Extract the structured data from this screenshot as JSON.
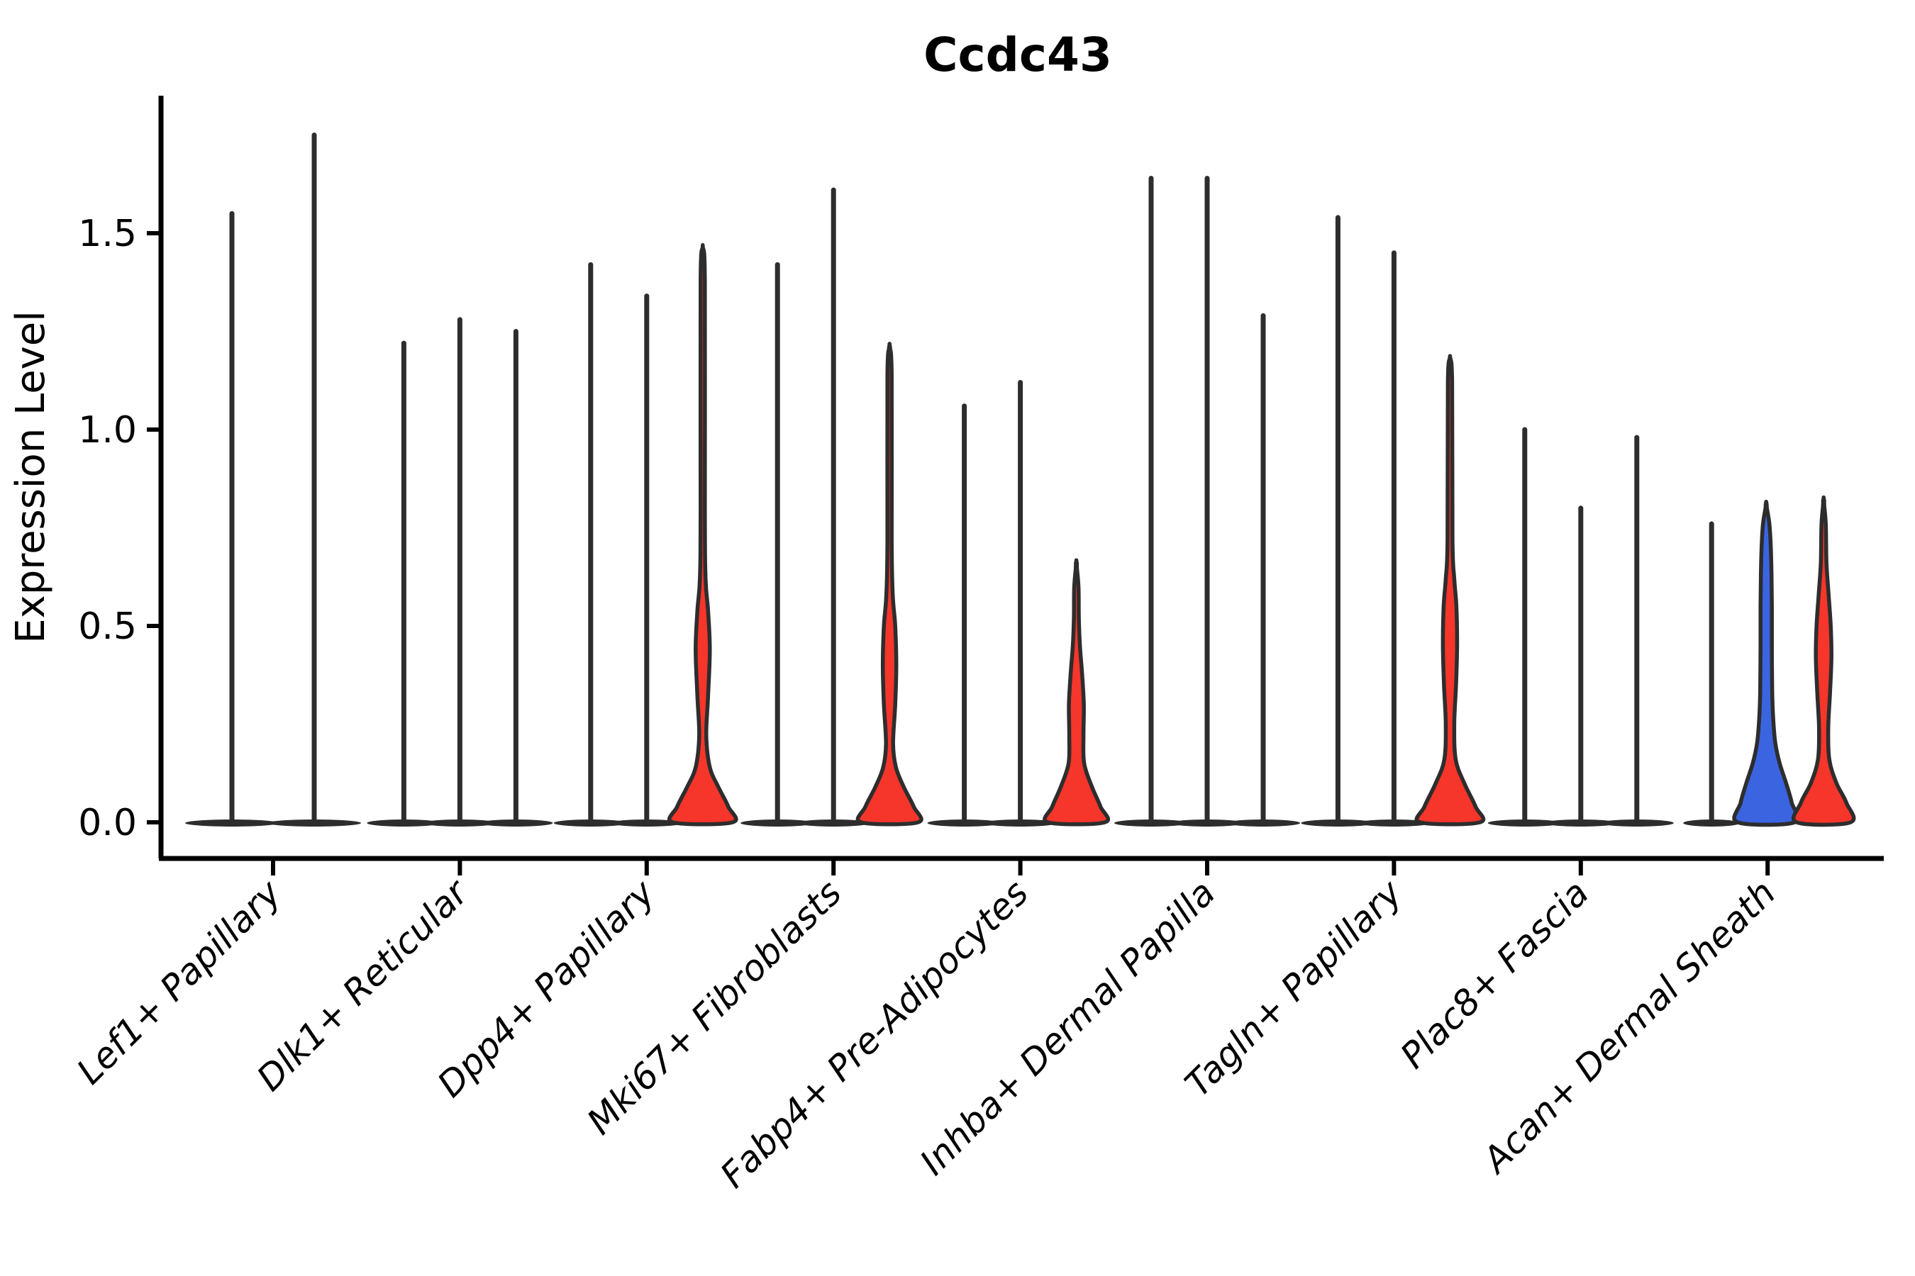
{
  "chart_data": {
    "type": "violin",
    "title": "Ccdc43",
    "ylabel": "Expression Level",
    "xlabel": "",
    "ylim": [
      0,
      1.85
    ],
    "yticks": [
      0.0,
      0.5,
      1.0,
      1.5
    ],
    "ytick_labels": [
      "0.0",
      "0.5",
      "1.0",
      "1.5"
    ],
    "grid": false,
    "legend": "none",
    "colors": {
      "red": "#f6352b",
      "blue": "#3b64e0",
      "line": "#2d2d2d"
    },
    "categories": [
      {
        "label": "Lef1+ Papillary",
        "violins": [
          {
            "kind": "spike",
            "offset": -58,
            "max": 1.55,
            "pancake_halfwidth": 66
          },
          {
            "kind": "spike",
            "offset": 58,
            "max": 1.75,
            "pancake_halfwidth": 66
          }
        ]
      },
      {
        "label": "Dlk1+ Reticular",
        "violins": [
          {
            "kind": "spike",
            "offset": -79,
            "max": 1.22,
            "pancake_halfwidth": 52
          },
          {
            "kind": "spike",
            "offset": 0,
            "max": 1.28,
            "pancake_halfwidth": 52
          },
          {
            "kind": "spike",
            "offset": 79,
            "max": 1.25,
            "pancake_halfwidth": 52
          }
        ]
      },
      {
        "label": "Dpp4+ Papillary",
        "violins": [
          {
            "kind": "spike",
            "offset": -79,
            "max": 1.42,
            "pancake_halfwidth": 52
          },
          {
            "kind": "spike",
            "offset": 0,
            "max": 1.34,
            "pancake_halfwidth": 52
          },
          {
            "kind": "filled",
            "offset": 79,
            "max": 1.46,
            "fill": "red",
            "profile": [
              [
                0,
                42
              ],
              [
                0.04,
                36
              ],
              [
                0.09,
                22
              ],
              [
                0.14,
                10
              ],
              [
                0.22,
                5
              ],
              [
                0.32,
                7.5
              ],
              [
                0.44,
                10
              ],
              [
                0.54,
                7.5
              ],
              [
                0.62,
                4
              ],
              [
                0.8,
                3
              ],
              [
                1.38,
                3
              ],
              [
                1.46,
                0
              ]
            ]
          }
        ]
      },
      {
        "label": "Mki67+ Fibroblasts",
        "violins": [
          {
            "kind": "spike",
            "offset": -79,
            "max": 1.42,
            "pancake_halfwidth": 52
          },
          {
            "kind": "spike",
            "offset": 0,
            "max": 1.61,
            "pancake_halfwidth": 52
          },
          {
            "kind": "filled",
            "offset": 79,
            "max": 1.21,
            "fill": "red",
            "profile": [
              [
                0,
                40
              ],
              [
                0.04,
                34
              ],
              [
                0.09,
                20
              ],
              [
                0.14,
                9
              ],
              [
                0.2,
                5
              ],
              [
                0.3,
                8
              ],
              [
                0.4,
                9.5
              ],
              [
                0.5,
                8
              ],
              [
                0.58,
                4.5
              ],
              [
                0.72,
                3
              ],
              [
                1.14,
                3
              ],
              [
                1.21,
                0
              ]
            ]
          }
        ]
      },
      {
        "label": "Fabp4+ Pre-Adipocytes",
        "violins": [
          {
            "kind": "spike",
            "offset": -79,
            "max": 1.06,
            "pancake_halfwidth": 52
          },
          {
            "kind": "spike",
            "offset": 0,
            "max": 1.12,
            "pancake_halfwidth": 52
          },
          {
            "kind": "filled",
            "offset": 79,
            "max": 0.66,
            "fill": "red",
            "profile": [
              [
                0,
                40
              ],
              [
                0.04,
                34
              ],
              [
                0.09,
                22
              ],
              [
                0.15,
                11
              ],
              [
                0.22,
                10
              ],
              [
                0.3,
                10.5
              ],
              [
                0.38,
                8
              ],
              [
                0.45,
                5
              ],
              [
                0.52,
                3.5
              ],
              [
                0.6,
                3
              ],
              [
                0.66,
                0
              ]
            ]
          }
        ]
      },
      {
        "label": "Inhba+ Dermal Papilla",
        "violins": [
          {
            "kind": "spike",
            "offset": -79,
            "max": 1.64,
            "pancake_halfwidth": 52
          },
          {
            "kind": "spike",
            "offset": 0,
            "max": 1.64,
            "pancake_halfwidth": 52
          },
          {
            "kind": "spike",
            "offset": 79,
            "max": 1.29,
            "pancake_halfwidth": 52
          }
        ]
      },
      {
        "label": "Tagln+ Papillary",
        "violins": [
          {
            "kind": "spike",
            "offset": -79,
            "max": 1.54,
            "pancake_halfwidth": 52
          },
          {
            "kind": "spike",
            "offset": 0,
            "max": 1.45,
            "pancake_halfwidth": 52
          },
          {
            "kind": "filled",
            "offset": 79,
            "max": 1.18,
            "fill": "red",
            "profile": [
              [
                0,
                42
              ],
              [
                0.04,
                36
              ],
              [
                0.1,
                20
              ],
              [
                0.16,
                8
              ],
              [
                0.25,
                6
              ],
              [
                0.35,
                8.5
              ],
              [
                0.45,
                10
              ],
              [
                0.55,
                9
              ],
              [
                0.62,
                6
              ],
              [
                0.72,
                3.5
              ],
              [
                1.12,
                3
              ],
              [
                1.18,
                0
              ]
            ]
          }
        ]
      },
      {
        "label": "Plac8+ Fascia",
        "violins": [
          {
            "kind": "spike",
            "offset": -79,
            "max": 1.0,
            "pancake_halfwidth": 52
          },
          {
            "kind": "spike",
            "offset": 0,
            "max": 0.8,
            "pancake_halfwidth": 52
          },
          {
            "kind": "spike",
            "offset": 79,
            "max": 0.98,
            "pancake_halfwidth": 52
          }
        ]
      },
      {
        "label": "Acan+ Dermal Sheath",
        "violins": [
          {
            "kind": "spike",
            "offset": -79,
            "max": 0.76,
            "pancake_halfwidth": 40
          },
          {
            "kind": "filled",
            "offset": -2,
            "max": 0.81,
            "fill": "blue",
            "profile": [
              [
                0,
                40
              ],
              [
                0.05,
                36
              ],
              [
                0.1,
                28
              ],
              [
                0.15,
                19
              ],
              [
                0.2,
                13
              ],
              [
                0.26,
                10
              ],
              [
                0.33,
                8.5
              ],
              [
                0.45,
                8
              ],
              [
                0.55,
                8
              ],
              [
                0.63,
                7.5
              ],
              [
                0.7,
                6.5
              ],
              [
                0.76,
                4.5
              ],
              [
                0.81,
                0
              ]
            ]
          },
          {
            "kind": "filled",
            "offset": 79,
            "max": 0.82,
            "fill": "red",
            "profile": [
              [
                0,
                38
              ],
              [
                0.05,
                32
              ],
              [
                0.1,
                18
              ],
              [
                0.16,
                8
              ],
              [
                0.24,
                6.5
              ],
              [
                0.33,
                9
              ],
              [
                0.42,
                11
              ],
              [
                0.5,
                10
              ],
              [
                0.58,
                7
              ],
              [
                0.66,
                4
              ],
              [
                0.76,
                3
              ],
              [
                0.82,
                0
              ]
            ]
          }
        ]
      }
    ]
  }
}
